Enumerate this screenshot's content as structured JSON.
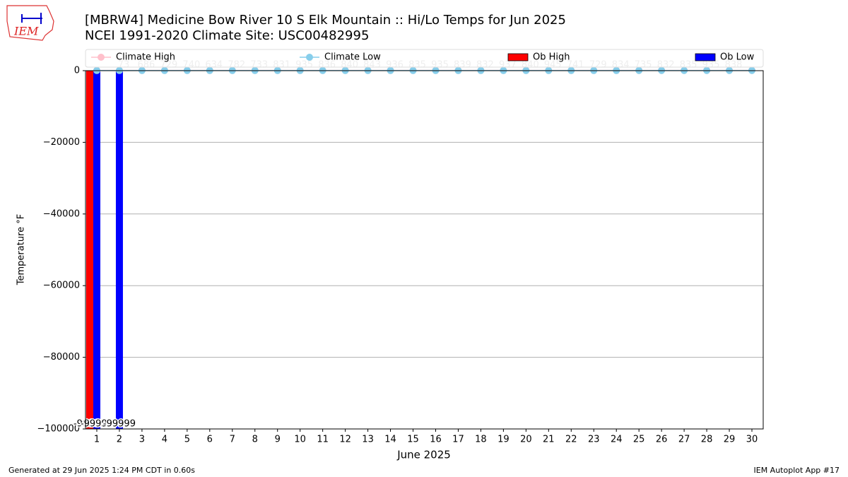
{
  "chart_data": {
    "type": "bar",
    "title": "[MBRW4] Medicine Bow River  10 S Elk Mountain :: Hi/Lo Temps for Jun 2025",
    "subtitle": "NCEI 1991-2020 Climate Site: USC00482995",
    "y_label": "Temperature $^\\circ$F",
    "x_label": "June 2025",
    "categories": [
      "1",
      "2",
      "3",
      "4",
      "5",
      "6",
      "7",
      "8",
      "9",
      "10",
      "11",
      "12",
      "13",
      "14",
      "15",
      "16",
      "17",
      "18",
      "19",
      "20",
      "21",
      "22",
      "23",
      "24",
      "25",
      "26",
      "27",
      "28",
      "29",
      "30"
    ],
    "series": [
      {
        "name": "Climate High",
        "kind": "line",
        "color": "#ffc0cb",
        "values": [
          70,
          70,
          71,
          71,
          72,
          72,
          73,
          73,
          74,
          74,
          75,
          75,
          75,
          76,
          76,
          77,
          77,
          77,
          78,
          78,
          78,
          79,
          79,
          79,
          80,
          80,
          80,
          80,
          81,
          81
        ]
      },
      {
        "name": "Climate Low",
        "kind": "line",
        "color": "#87ceeb",
        "values": [
          37,
          37,
          37,
          38,
          38,
          38,
          39,
          39,
          39,
          40,
          40,
          40,
          41,
          41,
          41,
          41,
          42,
          42,
          42,
          42,
          43,
          43,
          43,
          43,
          44,
          44,
          44,
          44,
          44,
          45
        ]
      },
      {
        "name": "Ob High",
        "kind": "bar",
        "color": "#ff0000",
        "values": [
          -99999,
          null,
          null,
          null,
          null,
          null,
          null,
          null,
          null,
          null,
          null,
          null,
          null,
          null,
          null,
          null,
          null,
          null,
          null,
          null,
          null,
          null,
          null,
          null,
          null,
          null,
          null,
          null,
          null,
          null
        ]
      },
      {
        "name": "Ob Low",
        "kind": "bar",
        "color": "#0000ff",
        "values": [
          -99999,
          -99999,
          null,
          null,
          null,
          null,
          null,
          null,
          null,
          null,
          null,
          null,
          null,
          null,
          null,
          null,
          null,
          null,
          null,
          null,
          null,
          null,
          null,
          null,
          null,
          null,
          null,
          null,
          null,
          null
        ]
      }
    ],
    "top_labels": [
      null,
      "73",
      "686",
      "729",
      "740",
      "634",
      "782",
      "733",
      "831",
      "935",
      "836",
      "840",
      "843",
      "936",
      "835",
      "935",
      "839",
      "832",
      "937",
      "840",
      "945",
      "741",
      "729",
      "834",
      "735",
      "832",
      "835",
      "935",
      "838",
      null
    ],
    "ylim": [
      -100000,
      0
    ],
    "yticks": [
      {
        "value": -100000,
        "label": "−100000"
      },
      {
        "value": -80000,
        "label": "−80000"
      },
      {
        "value": -60000,
        "label": "−60000"
      },
      {
        "value": -40000,
        "label": "−40000"
      },
      {
        "value": -20000,
        "label": "−20000"
      },
      0
    ],
    "grid": true
  },
  "footer": {
    "left": "Generated at 29 Jun 2025 1:24 PM CDT in 0.60s",
    "right": "IEM Autoplot App #17"
  },
  "logo": "IEM"
}
